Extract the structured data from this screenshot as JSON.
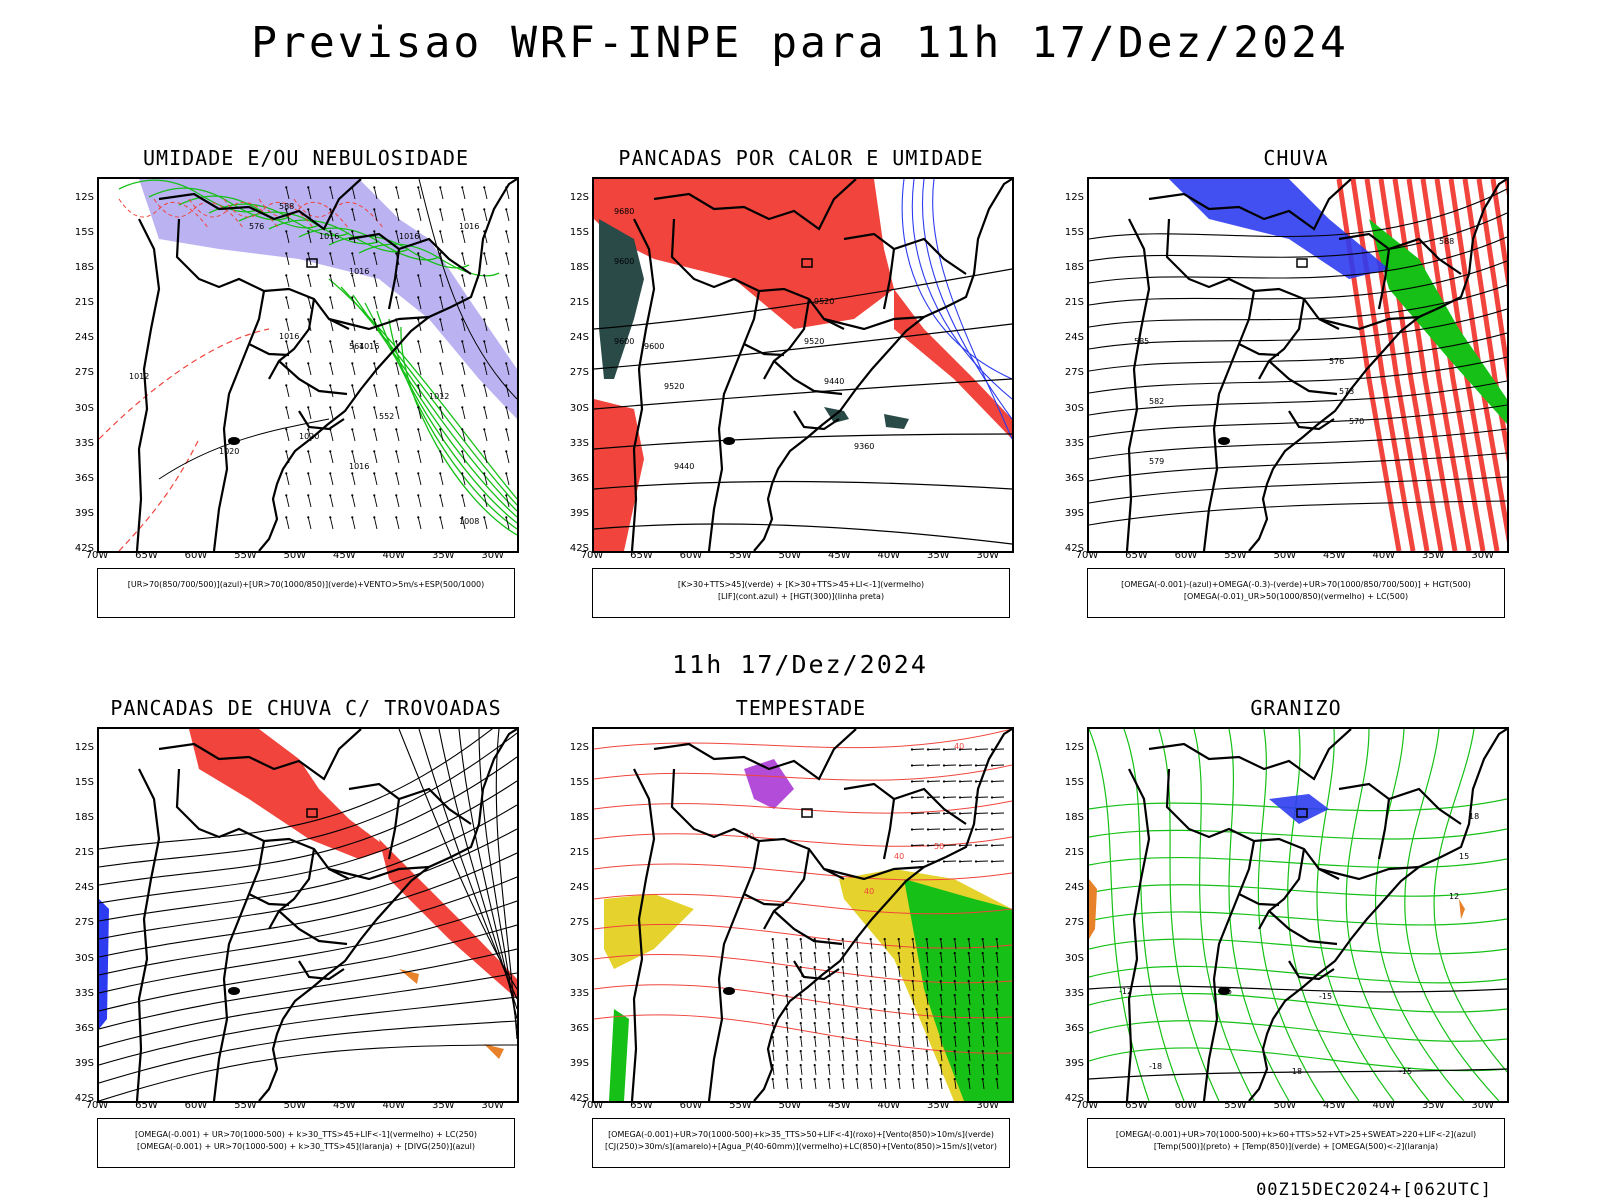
{
  "header": {
    "title": "Previsao WRF-INPE  para 11h 17/Dez/2024",
    "mid_title": "11h 17/Dez/2024"
  },
  "footer": "00Z15DEC2024+[062UTC]",
  "axis": {
    "lat_labels": [
      "12S",
      "15S",
      "18S",
      "21S",
      "24S",
      "27S",
      "30S",
      "33S",
      "36S",
      "39S",
      "42S"
    ],
    "lon_labels": [
      "70W",
      "65W",
      "60W",
      "55W",
      "50W",
      "45W",
      "40W",
      "35W",
      "30W"
    ]
  },
  "colors": {
    "red": "#f0443c",
    "green": "#16c016",
    "blue": "#2d3cf0",
    "purple": "#a020d0",
    "yellow": "#e6d22c",
    "orange": "#e8822a",
    "teal": "#2a4a48",
    "lavender": "#b4aaf0"
  },
  "panels": [
    {
      "id": "umidade",
      "title": "UMIDADE E/OU NEBULOSIDADE",
      "legend": [
        "[UR>70(850/700/500)](azul)+[UR>70(1000/850)](verde)+VENTO>5m/s+ESP(500/1000)"
      ],
      "contour_labels": [
        "1016",
        "1016",
        "1016",
        "1016",
        "1016",
        "1016",
        "1012",
        "1020",
        "1020",
        "1008",
        "1012",
        "1016",
        "588",
        "576",
        "564",
        "552"
      ]
    },
    {
      "id": "pancadas_calor",
      "title": "PANCADAS POR CALOR E UMIDADE",
      "legend": [
        "[K>30+TTS>45](verde) + [K>30+TTS>45+LI<-1](vermelho)",
        "[LIF](cont.azul) + [HGT(300)](linha preta)"
      ],
      "contour_labels": [
        "9680",
        "9600",
        "9600",
        "9520",
        "9600",
        "9520",
        "9520",
        "9440",
        "9440",
        "9360"
      ]
    },
    {
      "id": "chuva",
      "title": "CHUVA",
      "legend": [
        "[OMEGA(-0.001)-(azul)+OMEGA(-0.3)-(verde)+UR>70(1000/850/700/500)] + HGT(500)",
        "[OMEGA(-0.01)_UR>50(1000/850)(vermelho) + LC(500)"
      ],
      "contour_labels": [
        "585",
        "582",
        "579",
        "576",
        "573",
        "570",
        "588"
      ]
    },
    {
      "id": "trovoadas",
      "title": "PANCADAS DE CHUVA C/ TROVOADAS",
      "legend": [
        "[OMEGA(-0.001) + UR>70(1000-500) + k>30_TTS>45+LIF<-1](vermelho) + LC(250)",
        "[OMEGA(-0.001) + UR>70(1000-500) + k>30_TTS>45](laranja) + [DIVG(250)](azul)"
      ],
      "contour_labels": []
    },
    {
      "id": "tempestade",
      "title": "TEMPESTADE",
      "legend": [
        "[OMEGA(-0.001)+UR>70(1000-500)+k>35_TTS>50+LIF<-4](roxo)+[Vento(850)>10m/s](verde)",
        "[CJ(250)>30m/s](amarelo)+[Agua_P(40-60mm)](vermelho)+LC(850)+[Vento(850)>15m/s](vetor)"
      ],
      "contour_labels": [
        "40",
        "40",
        "40",
        "50",
        "40"
      ]
    },
    {
      "id": "granizo",
      "title": "GRANIZO",
      "legend": [
        "[OMEGA(-0.001)+UR>70(1000-500)+k>60+TTS>52+VT>25+SWEAT>220+LIF<-2](azul)",
        "[Temp(500)](preto) + [Temp(850)](verde) + [OMEGA(500)<-2](laranja)"
      ],
      "contour_labels": [
        "-12",
        "-15",
        "-15",
        "-15",
        "-18",
        "-18",
        "12",
        "15",
        "18"
      ]
    }
  ]
}
